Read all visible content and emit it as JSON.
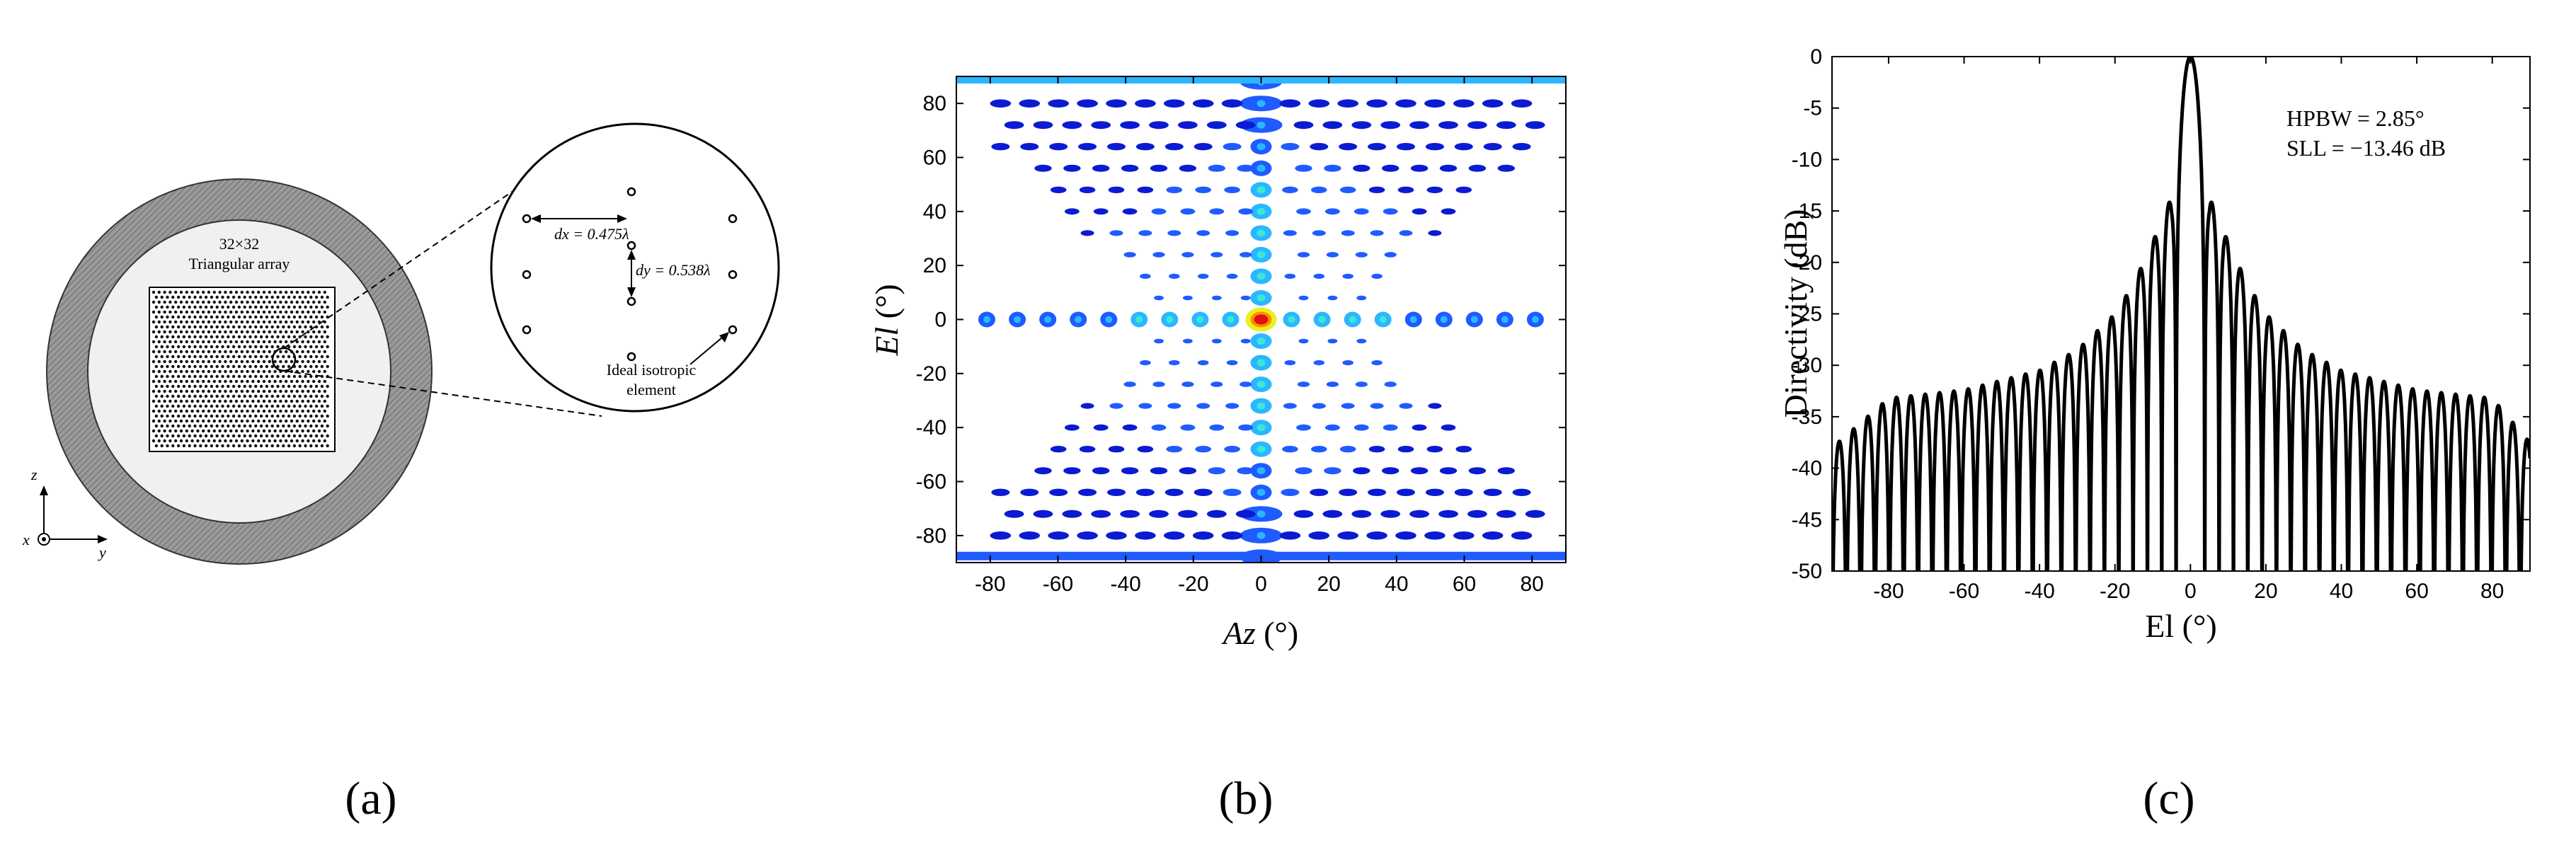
{
  "panels": {
    "a": {
      "label": "(a)",
      "array_size": "32×32",
      "array_type": "Triangular array",
      "dx": "dx = 0.475λ",
      "dy": "dy = 0.538λ",
      "element_line1": "Ideal isotropic",
      "element_line2": "element",
      "axis_z": "z",
      "axis_x": "x",
      "axis_y": "y",
      "colors": {
        "radome": "#8c8c8c",
        "inner": "#f0f0f0",
        "element": "#111111"
      }
    },
    "b": {
      "label": "(b)",
      "xlabel_italic": "Az",
      "xlabel_unit": " (°)",
      "ylabel_italic": "El",
      "ylabel_unit": " (°)",
      "colormap": [
        "#0b1bd1",
        "#1f5bff",
        "#2bb7ff",
        "#3ee6d6",
        "#e8f020",
        "#ff8a00",
        "#e01010"
      ]
    },
    "c": {
      "label": "(c)",
      "annotation_hpbw": "HPBW = 2.85°",
      "annotation_sll": "SLL = −13.46 dB",
      "line_color": "#000000"
    }
  },
  "chart_data": [
    {
      "type": "heatmap",
      "title": "",
      "xlabel": "Az (°)",
      "ylabel": "El (°)",
      "xlim": [
        -90,
        90
      ],
      "ylim": [
        -90,
        90
      ],
      "xticks": [
        -80,
        -60,
        -40,
        -20,
        0,
        20,
        40,
        60,
        80
      ],
      "yticks": [
        -80,
        -60,
        -40,
        -20,
        0,
        20,
        40,
        60,
        80
      ],
      "peak": {
        "az": 0,
        "el": 0
      }
    },
    {
      "type": "line",
      "title": "",
      "xlabel": "El (°)",
      "ylabel": "Directivity (dB)",
      "xlim": [
        -95,
        90
      ],
      "ylim": [
        -50,
        0
      ],
      "xticks": [
        -80,
        -60,
        -40,
        -20,
        0,
        20,
        40,
        60,
        80
      ],
      "yticks": [
        0,
        -5,
        -10,
        -15,
        -20,
        -25,
        -30,
        -35,
        -40,
        -45,
        -50
      ],
      "hpbw_deg": 2.85,
      "sll_db": -13.46,
      "envelope": [
        [
          -95,
          -38
        ],
        [
          -80,
          -33.2
        ],
        [
          -60,
          -32.4
        ],
        [
          -40,
          -30.5
        ],
        [
          -30,
          -28.5
        ],
        [
          -20,
          -25
        ],
        [
          -15,
          -22
        ],
        [
          -10,
          -18
        ],
        [
          -5,
          -13.6
        ],
        [
          0,
          0
        ],
        [
          5,
          -13.6
        ],
        [
          10,
          -18
        ],
        [
          15,
          -22
        ],
        [
          20,
          -25
        ],
        [
          30,
          -28.5
        ],
        [
          40,
          -30.5
        ],
        [
          60,
          -32.4
        ],
        [
          80,
          -33.2
        ],
        [
          90,
          -37.5
        ]
      ]
    }
  ]
}
